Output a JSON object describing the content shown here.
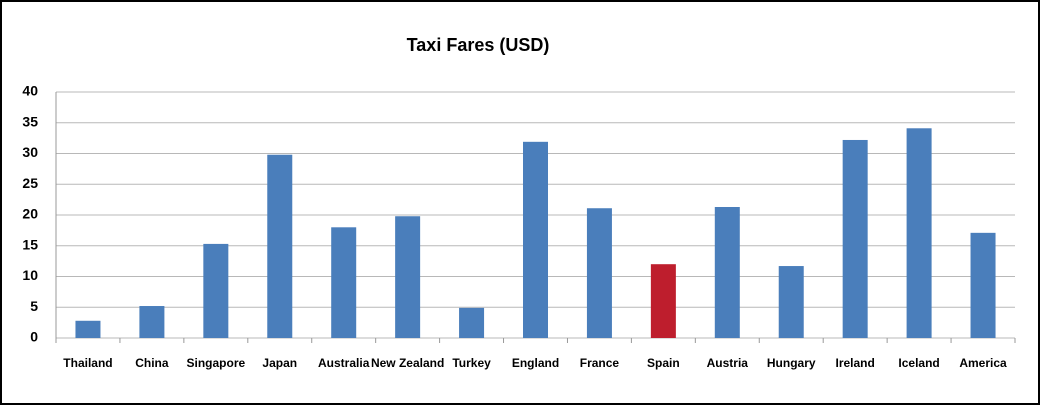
{
  "chart_data": {
    "type": "bar",
    "title": "Taxi Fares (USD)",
    "categories": [
      "Thailand",
      "China",
      "Singapore",
      "Japan",
      "Australia",
      "New Zealand",
      "Turkey",
      "England",
      "France",
      "Spain",
      "Austria",
      "Hungary",
      "Ireland",
      "Iceland",
      "America"
    ],
    "values": [
      2.8,
      5.2,
      15.3,
      29.8,
      18.0,
      19.8,
      4.9,
      31.9,
      21.1,
      12.0,
      21.3,
      11.7,
      32.2,
      34.1,
      17.1
    ],
    "colors": [
      "#4a7ebb",
      "#4a7ebb",
      "#4a7ebb",
      "#4a7ebb",
      "#4a7ebb",
      "#4a7ebb",
      "#4a7ebb",
      "#4a7ebb",
      "#4a7ebb",
      "#be1e2d",
      "#4a7ebb",
      "#4a7ebb",
      "#4a7ebb",
      "#4a7ebb",
      "#4a7ebb"
    ],
    "ylim": [
      0,
      40
    ],
    "yticks": [
      0,
      5,
      10,
      15,
      20,
      25,
      30,
      35,
      40
    ],
    "grid": true
  }
}
